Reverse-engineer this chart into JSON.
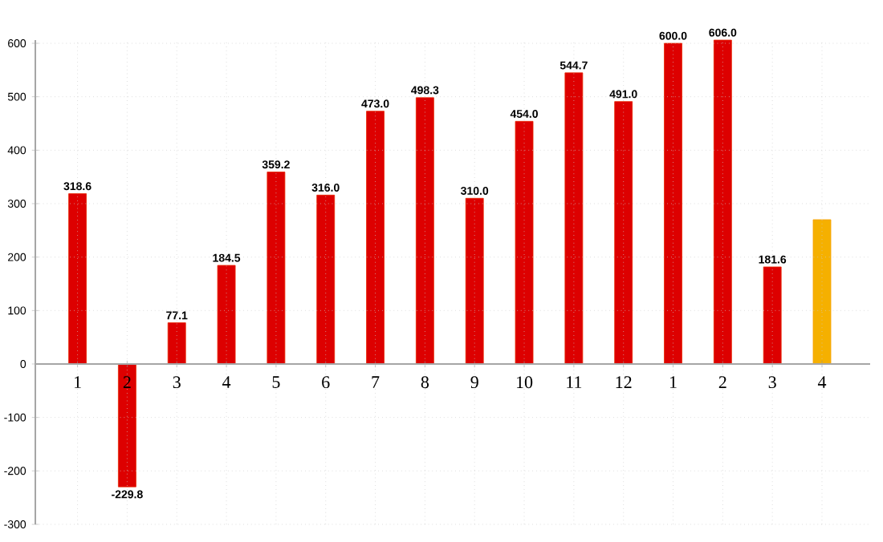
{
  "chart_data": {
    "type": "bar",
    "categories": [
      "1",
      "2",
      "3",
      "4",
      "5",
      "6",
      "7",
      "8",
      "9",
      "10",
      "11",
      "12",
      "1",
      "2",
      "3",
      "4"
    ],
    "values": [
      318.6,
      -229.8,
      77.1,
      184.5,
      359.2,
      316.0,
      473.0,
      498.3,
      310.0,
      454.0,
      544.7,
      491.0,
      600.0,
      606.0,
      181.6,
      270
    ],
    "value_labels": [
      "318.6",
      "-229.8",
      "77.1",
      "184.5",
      "359.2",
      "316.0",
      "473.0",
      "498.3",
      "310.0",
      "454.0",
      "544.7",
      "491.0",
      "600.0",
      "606.0",
      "181.6",
      null
    ],
    "colors": [
      "#dd0000",
      "#dd0000",
      "#dd0000",
      "#dd0000",
      "#dd0000",
      "#dd0000",
      "#dd0000",
      "#dd0000",
      "#dd0000",
      "#dd0000",
      "#dd0000",
      "#dd0000",
      "#dd0000",
      "#dd0000",
      "#dd0000",
      "#f5b000"
    ],
    "ylim": [
      -300,
      606
    ],
    "yticks": [
      -300,
      -200,
      -100,
      0,
      100,
      200,
      300,
      400,
      500,
      600
    ],
    "grid": true
  }
}
